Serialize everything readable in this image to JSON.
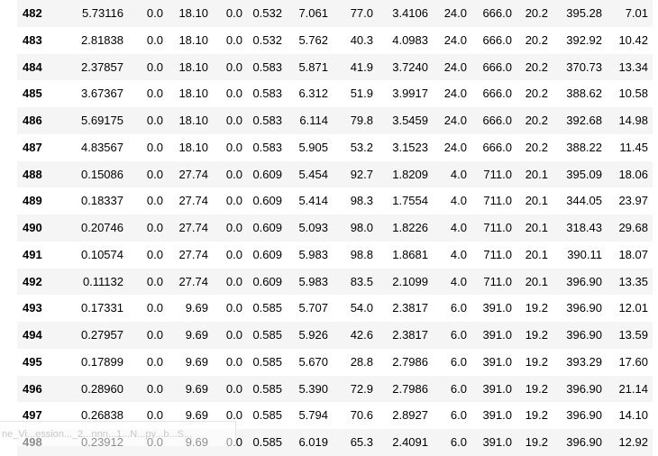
{
  "table": {
    "rows": [
      [
        "482",
        "5.73116",
        "0.0",
        "18.10",
        "0.0",
        "0.532",
        "7.061",
        "77.0",
        "3.4106",
        "24.0",
        "666.0",
        "20.2",
        "395.28",
        "7.01"
      ],
      [
        "483",
        "2.81838",
        "0.0",
        "18.10",
        "0.0",
        "0.532",
        "5.762",
        "40.3",
        "4.0983",
        "24.0",
        "666.0",
        "20.2",
        "392.92",
        "10.42"
      ],
      [
        "484",
        "2.37857",
        "0.0",
        "18.10",
        "0.0",
        "0.583",
        "5.871",
        "41.9",
        "3.7240",
        "24.0",
        "666.0",
        "20.2",
        "370.73",
        "13.34"
      ],
      [
        "485",
        "3.67367",
        "0.0",
        "18.10",
        "0.0",
        "0.583",
        "6.312",
        "51.9",
        "3.9917",
        "24.0",
        "666.0",
        "20.2",
        "388.62",
        "10.58"
      ],
      [
        "486",
        "5.69175",
        "0.0",
        "18.10",
        "0.0",
        "0.583",
        "6.114",
        "79.8",
        "3.5459",
        "24.0",
        "666.0",
        "20.2",
        "392.68",
        "14.98"
      ],
      [
        "487",
        "4.83567",
        "0.0",
        "18.10",
        "0.0",
        "0.583",
        "5.905",
        "53.2",
        "3.1523",
        "24.0",
        "666.0",
        "20.2",
        "388.22",
        "11.45"
      ],
      [
        "488",
        "0.15086",
        "0.0",
        "27.74",
        "0.0",
        "0.609",
        "5.454",
        "92.7",
        "1.8209",
        "4.0",
        "711.0",
        "20.1",
        "395.09",
        "18.06"
      ],
      [
        "489",
        "0.18337",
        "0.0",
        "27.74",
        "0.0",
        "0.609",
        "5.414",
        "98.3",
        "1.7554",
        "4.0",
        "711.0",
        "20.1",
        "344.05",
        "23.97"
      ],
      [
        "490",
        "0.20746",
        "0.0",
        "27.74",
        "0.0",
        "0.609",
        "5.093",
        "98.0",
        "1.8226",
        "4.0",
        "711.0",
        "20.1",
        "318.43",
        "29.68"
      ],
      [
        "491",
        "0.10574",
        "0.0",
        "27.74",
        "0.0",
        "0.609",
        "5.983",
        "98.8",
        "1.8681",
        "4.0",
        "711.0",
        "20.1",
        "390.11",
        "18.07"
      ],
      [
        "492",
        "0.11132",
        "0.0",
        "27.74",
        "0.0",
        "0.609",
        "5.983",
        "83.5",
        "2.1099",
        "4.0",
        "711.0",
        "20.1",
        "396.90",
        "13.35"
      ],
      [
        "493",
        "0.17331",
        "0.0",
        "9.69",
        "0.0",
        "0.585",
        "5.707",
        "54.0",
        "2.3817",
        "6.0",
        "391.0",
        "19.2",
        "396.90",
        "12.01"
      ],
      [
        "494",
        "0.27957",
        "0.0",
        "9.69",
        "0.0",
        "0.585",
        "5.926",
        "42.6",
        "2.3817",
        "6.0",
        "391.0",
        "19.2",
        "396.90",
        "13.59"
      ],
      [
        "495",
        "0.17899",
        "0.0",
        "9.69",
        "0.0",
        "0.585",
        "5.670",
        "28.8",
        "2.7986",
        "6.0",
        "391.0",
        "19.2",
        "393.29",
        "17.60"
      ],
      [
        "496",
        "0.28960",
        "0.0",
        "9.69",
        "0.0",
        "0.585",
        "5.390",
        "72.9",
        "2.7986",
        "6.0",
        "391.0",
        "19.2",
        "396.90",
        "21.14"
      ],
      [
        "497",
        "0.26838",
        "0.0",
        "9.69",
        "0.0",
        "0.585",
        "5.794",
        "70.6",
        "2.8927",
        "6.0",
        "391.0",
        "19.2",
        "396.90",
        "14.10"
      ],
      [
        "498",
        "0.23912",
        "0.0",
        "9.69",
        "0.0",
        "0.585",
        "6.019",
        "65.3",
        "2.4091",
        "6.0",
        "391.0",
        "19.2",
        "396.90",
        "12.92"
      ]
    ]
  },
  "taskbar": {
    "label": "ne_Vi...ession..._2...nnn...1...N...py...b...S..."
  }
}
